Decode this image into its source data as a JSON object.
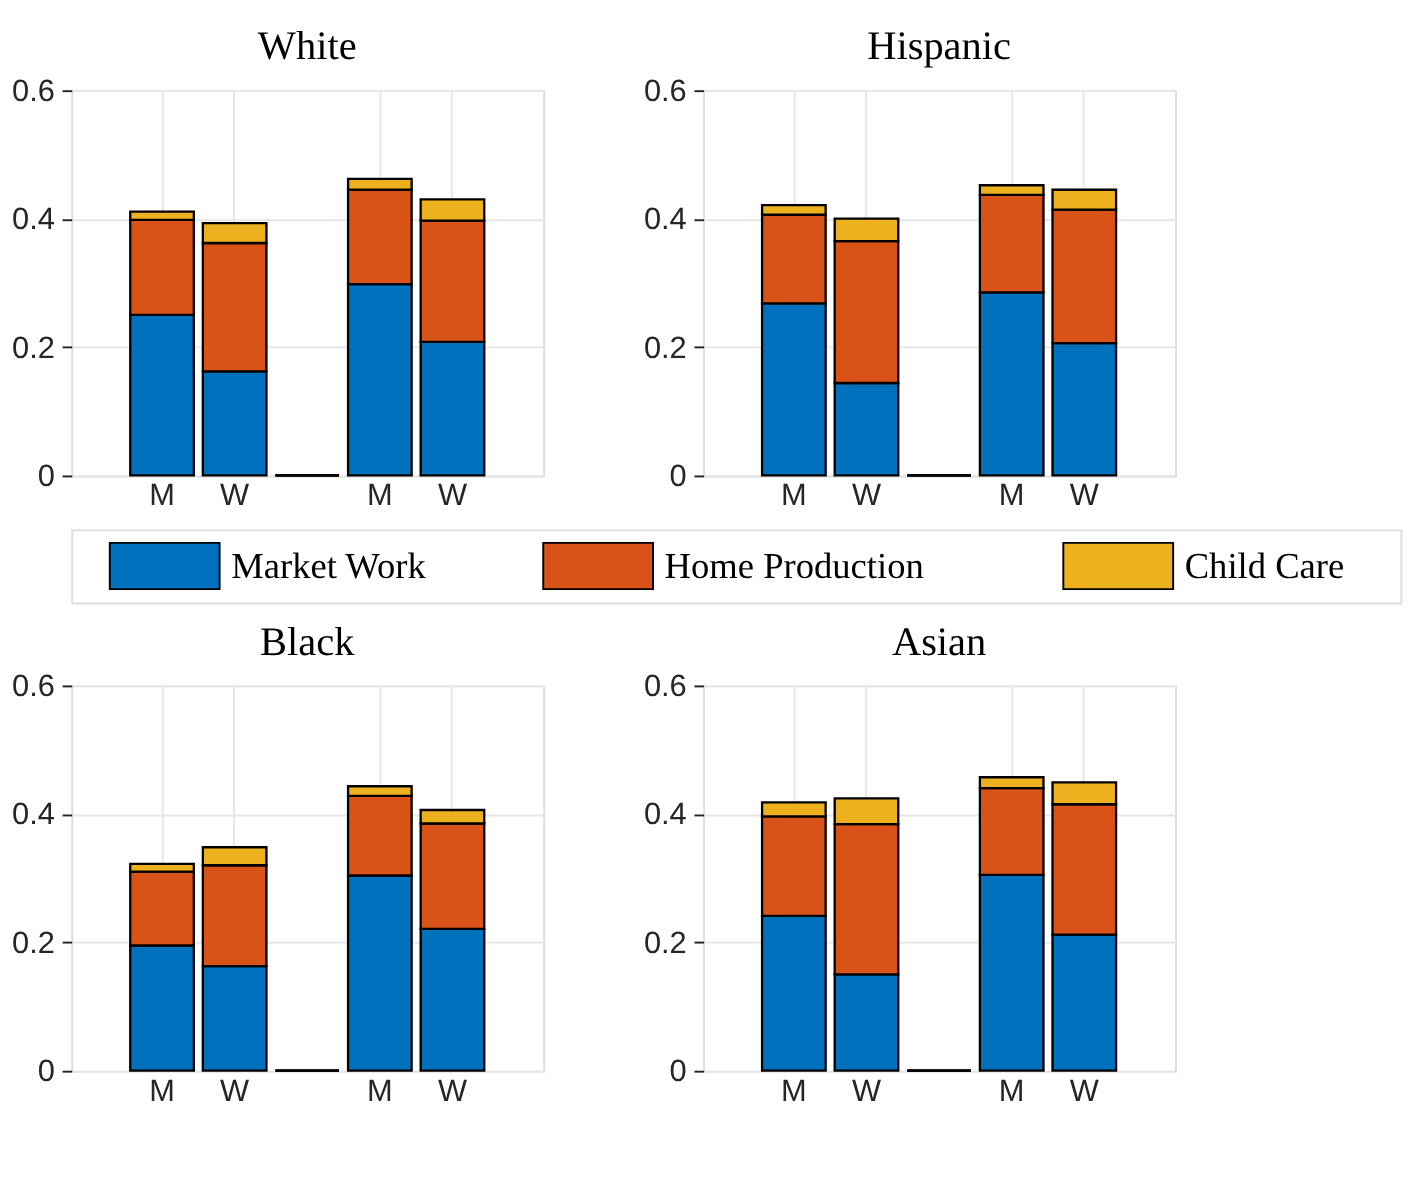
{
  "chart_data": [
    {
      "type": "bar",
      "title": "White",
      "stacked": true,
      "categories": [
        "M",
        "W",
        null,
        "M",
        "W"
      ],
      "ylim": [
        0,
        0.6
      ],
      "yticks": [
        0,
        0.2,
        0.4,
        0.6
      ],
      "grid": true,
      "legend": "bottom",
      "series": [
        {
          "name": "Market Work",
          "color": "#0072bd",
          "values": [
            0.25,
            0.162,
            0,
            0.298,
            0.208
          ]
        },
        {
          "name": "Home Production",
          "color": "#d95319",
          "values": [
            0.148,
            0.2,
            0,
            0.147,
            0.189
          ]
        },
        {
          "name": "Child Care",
          "color": "#edb120",
          "values": [
            0.013,
            0.031,
            0,
            0.017,
            0.033
          ]
        }
      ]
    },
    {
      "type": "bar",
      "title": "Hispanic",
      "stacked": true,
      "categories": [
        "M",
        "W",
        null,
        "M",
        "W"
      ],
      "ylim": [
        0,
        0.6
      ],
      "yticks": [
        0,
        0.2,
        0.4,
        0.6
      ],
      "grid": true,
      "series": [
        {
          "color": "#0072bd",
          "values": [
            0.268,
            0.144,
            0,
            0.285,
            0.206
          ]
        },
        {
          "color": "#d95319",
          "values": [
            0.138,
            0.221,
            0,
            0.152,
            0.208
          ]
        },
        {
          "color": "#edb120",
          "values": [
            0.015,
            0.035,
            0,
            0.015,
            0.031
          ]
        }
      ]
    },
    {
      "type": "bar",
      "title": "Black",
      "stacked": true,
      "categories": [
        "M",
        "W",
        null,
        "M",
        "W"
      ],
      "ylim": [
        0,
        0.6
      ],
      "yticks": [
        0,
        0.2,
        0.4,
        0.6
      ],
      "grid": true,
      "series": [
        {
          "color": "#0072bd",
          "values": [
            0.195,
            0.163,
            0,
            0.304,
            0.221
          ]
        },
        {
          "color": "#d95319",
          "values": [
            0.115,
            0.157,
            0,
            0.124,
            0.164
          ]
        },
        {
          "color": "#edb120",
          "values": [
            0.012,
            0.028,
            0,
            0.015,
            0.021
          ]
        }
      ]
    },
    {
      "type": "bar",
      "title": "Asian",
      "stacked": true,
      "categories": [
        "M",
        "W",
        null,
        "M",
        "W"
      ],
      "ylim": [
        0,
        0.6
      ],
      "yticks": [
        0,
        0.2,
        0.4,
        0.6
      ],
      "grid": true,
      "series": [
        {
          "color": "#0072bd",
          "values": [
            0.241,
            0.15,
            0,
            0.305,
            0.212
          ]
        },
        {
          "color": "#d95319",
          "values": [
            0.155,
            0.234,
            0,
            0.135,
            0.203
          ]
        },
        {
          "color": "#edb120",
          "values": [
            0.022,
            0.04,
            0,
            0.017,
            0.034
          ]
        }
      ]
    }
  ]
}
